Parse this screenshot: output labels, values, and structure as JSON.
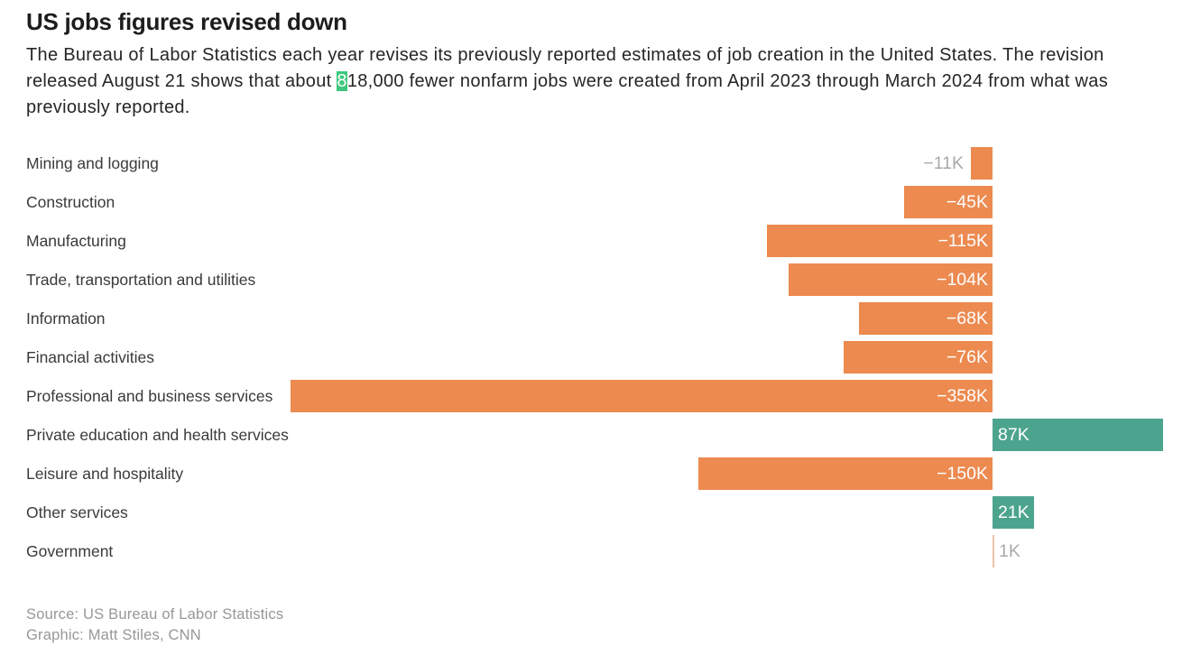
{
  "title": "US jobs figures revised down",
  "description": {
    "line1": "The Bureau of Labor Statistics each year revises its previously reported estimates of job creation in the United States. The revision",
    "line2_before": "released August 21 shows that about ",
    "line2_highlight": "8",
    "line2_after": "18,000 fewer nonfarm jobs were created from April 2023 through March 2024 from what was",
    "line3": "previously reported."
  },
  "footer": {
    "source": "Source: US Bureau of Labor Statistics",
    "credit": "Graphic: Matt Stiles, CNN"
  },
  "colors": {
    "negative_bar": "#EC8A50",
    "positive_bar": "#4DA48E",
    "tiny_bar": "#EEC3A9",
    "muted_label": "#A9A9A9",
    "inside_label": "#FFFFFF",
    "highlight": "#3EC77E"
  },
  "chart_data": {
    "type": "bar",
    "orientation": "horizontal",
    "unit": "thousands of jobs (K)",
    "baseline": 0,
    "grid": "off",
    "xlim": [
      -380,
      100
    ],
    "categories": [
      "Mining and logging",
      "Construction",
      "Manufacturing",
      "Trade, transportation and utilities",
      "Information",
      "Financial activities",
      "Professional and business services",
      "Private education and health services",
      "Leisure and hospitality",
      "Other services",
      "Government"
    ],
    "values": [
      -11,
      -45,
      -115,
      -104,
      -68,
      -76,
      -358,
      87,
      -150,
      21,
      1
    ],
    "value_labels": [
      "−11K",
      "−45K",
      "−115K",
      "−104K",
      "−68K",
      "−76K",
      "−358K",
      "87K",
      "−150K",
      "21K",
      "1K"
    ]
  }
}
